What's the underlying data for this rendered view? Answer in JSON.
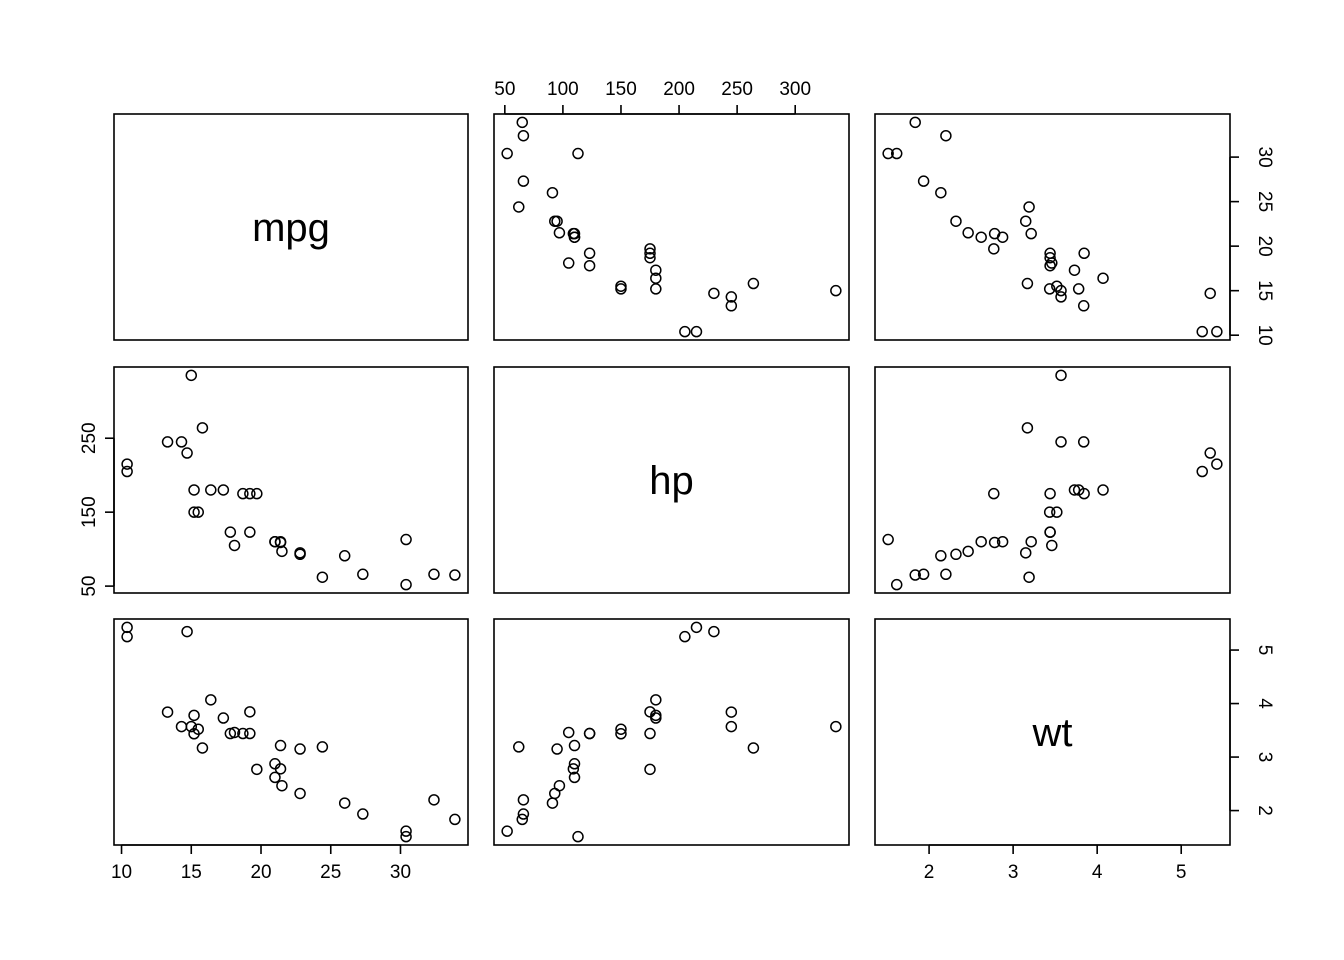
{
  "chart_data": {
    "type": "scatter",
    "subtype": "scatterplot-matrix",
    "title": "",
    "variables": [
      "mpg",
      "hp",
      "wt"
    ],
    "ranges": {
      "mpg": [
        10.4,
        33.9
      ],
      "hp": [
        52,
        335
      ],
      "wt": [
        1.513,
        5.424
      ]
    },
    "ticks": {
      "mpg": [
        10,
        15,
        20,
        25,
        30
      ],
      "hp": [
        50,
        100,
        150,
        200,
        250,
        300
      ],
      "hp_side": [
        50,
        150,
        250
      ],
      "wt": [
        2,
        3,
        4,
        5
      ]
    },
    "observations": {
      "mpg": [
        21.0,
        21.0,
        22.8,
        21.4,
        18.7,
        18.1,
        14.3,
        24.4,
        22.8,
        19.2,
        17.8,
        16.4,
        17.3,
        15.2,
        10.4,
        10.4,
        14.7,
        32.4,
        30.4,
        33.9,
        21.5,
        15.5,
        15.2,
        13.3,
        19.2,
        27.3,
        26.0,
        30.4,
        15.8,
        19.7,
        15.0,
        21.4
      ],
      "hp": [
        110,
        110,
        93,
        110,
        175,
        105,
        245,
        62,
        95,
        123,
        123,
        180,
        180,
        180,
        205,
        215,
        230,
        66,
        52,
        65,
        97,
        150,
        150,
        245,
        175,
        66,
        91,
        113,
        264,
        175,
        335,
        109
      ],
      "wt": [
        2.62,
        2.875,
        2.32,
        3.215,
        3.44,
        3.46,
        3.57,
        3.19,
        3.15,
        3.44,
        3.44,
        4.07,
        3.73,
        3.78,
        5.25,
        5.424,
        5.345,
        2.2,
        1.615,
        1.835,
        2.465,
        3.52,
        3.435,
        3.84,
        3.845,
        1.935,
        2.14,
        1.513,
        3.17,
        2.77,
        3.57,
        2.78
      ]
    },
    "grid": false,
    "legend": "none"
  }
}
